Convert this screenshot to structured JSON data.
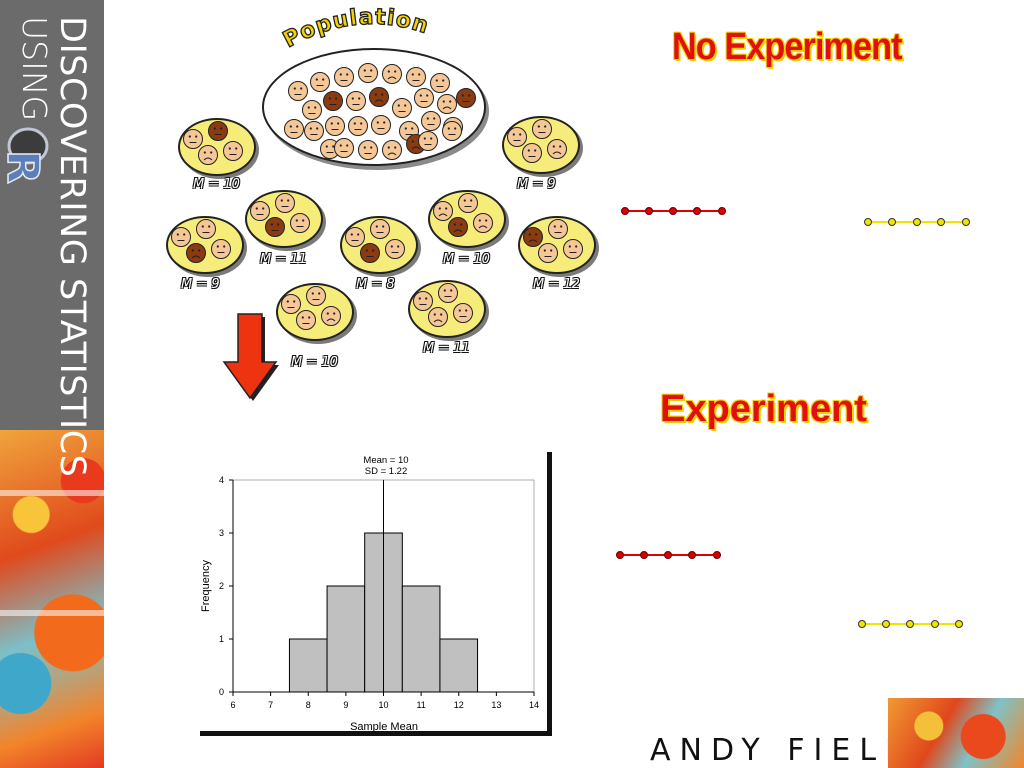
{
  "sidebar": {
    "title_line1": "DISCOVERING STATISTICS",
    "title_line2": "USING",
    "logo_letter": "R",
    "colors": {
      "panel": "#6b6b6b",
      "art_orange": "#f26b1d",
      "art_blue": "#3fa7c9"
    }
  },
  "population": {
    "title": "Population",
    "title_color": "#f3d200",
    "faces": [
      "neutral",
      "neutral",
      "neutral",
      "sad",
      "neutral",
      "neutral",
      "neutral",
      "neutral",
      "neutral-dark",
      "neutral",
      "sad-dark",
      "neutral",
      "neutral",
      "sad",
      "neutral-dark",
      "neutral",
      "neutral",
      "neutral",
      "neutral",
      "neutral",
      "neutral",
      "neutral",
      "neutral",
      "neutral",
      "neutral",
      "neutral",
      "sad",
      "sad-dark",
      "neutral",
      "neutral"
    ]
  },
  "samples": [
    {
      "label": "M = 10",
      "faces": [
        "neutral",
        "neutral-dark",
        "sad",
        "neutral"
      ]
    },
    {
      "label": "M = 9",
      "faces": [
        "neutral",
        "neutral",
        "neutral",
        "sad"
      ]
    },
    {
      "label": "M = 11",
      "faces": [
        "neutral",
        "neutral",
        "neutral-dark",
        "neutral"
      ]
    },
    {
      "label": "M = 10",
      "faces": [
        "sad",
        "neutral",
        "sad-dark",
        "sad"
      ]
    },
    {
      "label": "M = 9",
      "faces": [
        "neutral",
        "neutral",
        "sad-dark",
        "neutral"
      ]
    },
    {
      "label": "M = 8",
      "faces": [
        "neutral",
        "neutral",
        "neutral-dark",
        "neutral"
      ]
    },
    {
      "label": "M = 12",
      "faces": [
        "sad-dark",
        "neutral",
        "neutral",
        "neutral"
      ]
    },
    {
      "label": "M = 10",
      "faces": [
        "neutral",
        "neutral",
        "neutral",
        "sad"
      ]
    },
    {
      "label": "M = 11",
      "faces": [
        "neutral",
        "neutral",
        "sad",
        "neutral"
      ]
    }
  ],
  "headings": {
    "no_experiment": "No Experiment",
    "experiment": "Experiment"
  },
  "colors": {
    "red_dots": "#dd0000",
    "yellow_dots": "#f2e300",
    "heading_red": "#e01010",
    "arrow": "#ee3311"
  },
  "chart_data": {
    "type": "bar",
    "title": "",
    "annotations": [
      "Mean = 10",
      "SD = 1.22"
    ],
    "xlabel": "Sample Mean",
    "ylabel": "Frequency",
    "categories": [
      "8",
      "9",
      "10",
      "11",
      "12"
    ],
    "values": [
      1,
      2,
      3,
      2,
      1
    ],
    "x_ticks": [
      "6",
      "7",
      "8",
      "9",
      "10",
      "11",
      "12",
      "13",
      "14"
    ],
    "y_ticks": [
      "0",
      "1",
      "2",
      "3",
      "4"
    ],
    "xlim": [
      6,
      14
    ],
    "ylim": [
      0,
      4
    ],
    "mean_line_x": 10,
    "bar_color": "#c0c0c0",
    "grid": false,
    "legend": "none"
  },
  "footer": {
    "author": "ANDY FIELD"
  }
}
